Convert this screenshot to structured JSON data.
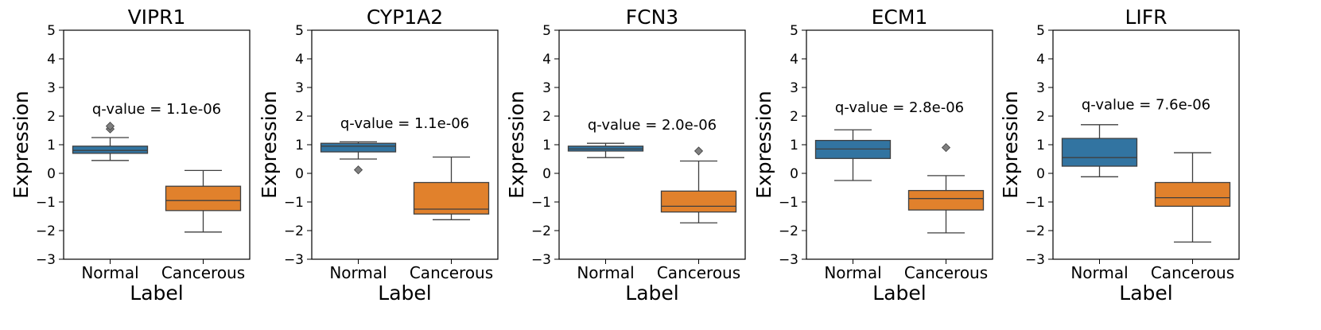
{
  "colors": {
    "normal": "#3274a1",
    "cancerous": "#e1812c",
    "line": "#3f3f3f",
    "flier": "#7f7f7f"
  },
  "chart_data": [
    {
      "type": "boxplot",
      "title": "VIPR1",
      "xlabel": "Label",
      "ylabel": "Expression",
      "categories": [
        "Normal",
        "Cancerous"
      ],
      "ylim": [
        -3,
        5
      ],
      "yticks": [
        "5",
        "4",
        "3",
        "2",
        "1",
        "0",
        "−1",
        "−2",
        "−3"
      ],
      "annotation": "q-value = 1.1e-06",
      "annotation_y": 2.25,
      "boxes": [
        {
          "whislo": 0.45,
          "q1": 0.7,
          "med": 0.8,
          "q3": 0.95,
          "whishi": 1.25,
          "fliers": [
            1.55,
            1.65
          ]
        },
        {
          "whislo": -2.05,
          "q1": -1.3,
          "med": -0.95,
          "q3": -0.45,
          "whishi": 0.1,
          "fliers": []
        }
      ]
    },
    {
      "type": "boxplot",
      "title": "CYP1A2",
      "xlabel": "Label",
      "ylabel": "Expression",
      "categories": [
        "Normal",
        "Cancerous"
      ],
      "ylim": [
        -3,
        5
      ],
      "yticks": [
        "5",
        "4",
        "3",
        "2",
        "1",
        "0",
        "−1",
        "−2",
        "−3"
      ],
      "annotation": "q-value = 1.1e-06",
      "annotation_y": 1.75,
      "boxes": [
        {
          "whislo": 0.5,
          "q1": 0.75,
          "med": 0.95,
          "q3": 1.05,
          "whishi": 1.1,
          "fliers": [
            0.12
          ]
        },
        {
          "whislo": -1.62,
          "q1": -1.42,
          "med": -1.25,
          "q3": -0.32,
          "whishi": 0.57,
          "fliers": []
        }
      ]
    },
    {
      "type": "boxplot",
      "title": "FCN3",
      "xlabel": "Label",
      "ylabel": "Expression",
      "categories": [
        "Normal",
        "Cancerous"
      ],
      "ylim": [
        -3,
        5
      ],
      "yticks": [
        "5",
        "4",
        "3",
        "2",
        "1",
        "0",
        "−1",
        "−2",
        "−3"
      ],
      "annotation": "q-value = 2.0e-06",
      "annotation_y": 1.7,
      "boxes": [
        {
          "whislo": 0.55,
          "q1": 0.78,
          "med": 0.85,
          "q3": 0.95,
          "whishi": 1.05,
          "fliers": []
        },
        {
          "whislo": -1.73,
          "q1": -1.35,
          "med": -1.15,
          "q3": -0.62,
          "whishi": 0.43,
          "fliers": [
            0.78
          ]
        }
      ]
    },
    {
      "type": "boxplot",
      "title": "ECM1",
      "xlabel": "Label",
      "ylabel": "Expression",
      "categories": [
        "Normal",
        "Cancerous"
      ],
      "ylim": [
        -3,
        5
      ],
      "yticks": [
        "5",
        "4",
        "3",
        "2",
        "1",
        "0",
        "−1",
        "−2",
        "−3"
      ],
      "annotation": "q-value = 2.8e-06",
      "annotation_y": 2.3,
      "boxes": [
        {
          "whislo": -0.25,
          "q1": 0.52,
          "med": 0.85,
          "q3": 1.15,
          "whishi": 1.52,
          "fliers": []
        },
        {
          "whislo": -2.08,
          "q1": -1.28,
          "med": -0.88,
          "q3": -0.6,
          "whishi": -0.08,
          "fliers": [
            0.9
          ]
        }
      ]
    },
    {
      "type": "boxplot",
      "title": "LIFR",
      "xlabel": "Label",
      "ylabel": "Expression",
      "categories": [
        "Normal",
        "Cancerous"
      ],
      "ylim": [
        -3,
        5
      ],
      "yticks": [
        "5",
        "4",
        "3",
        "2",
        "1",
        "0",
        "−1",
        "−2",
        "−3"
      ],
      "annotation": "q-value = 7.6e-06",
      "annotation_y": 2.4,
      "boxes": [
        {
          "whislo": -0.12,
          "q1": 0.25,
          "med": 0.55,
          "q3": 1.22,
          "whishi": 1.7,
          "fliers": []
        },
        {
          "whislo": -2.4,
          "q1": -1.15,
          "med": -0.85,
          "q3": -0.32,
          "whishi": 0.72,
          "fliers": []
        }
      ]
    }
  ]
}
